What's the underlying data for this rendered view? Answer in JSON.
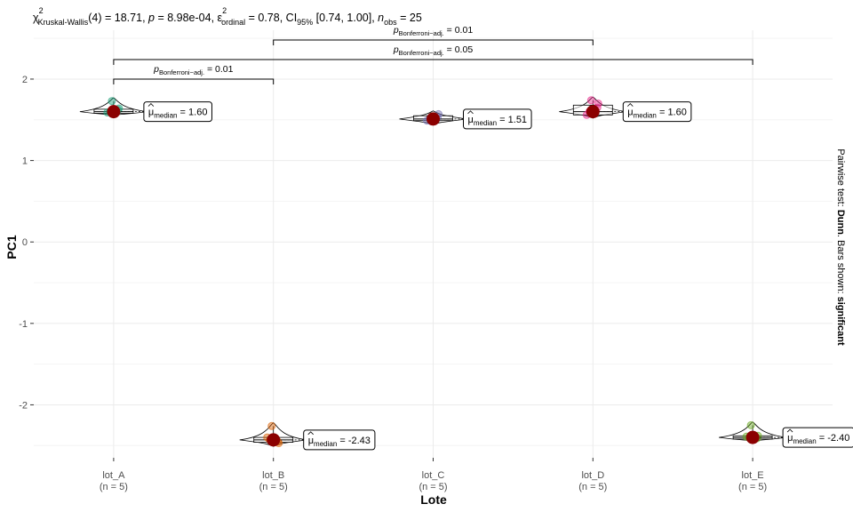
{
  "chart_data": {
    "type": "violin-box",
    "title_parts": {
      "stat_symbol": "χ",
      "stat_superscript": "2",
      "stat_subscript": "Kruskal-Wallis",
      "stat_value": "(4) = 18.71",
      "p_label": "p",
      "p_value": " = 8.98e-04",
      "effect_symbol": "ε",
      "effect_superscript": "2",
      "effect_subscript": "ordinal",
      "effect_value": " = 0.78",
      "ci_label": "CI",
      "ci_subscript": "95%",
      "ci_value": " [0.74, 1.00]",
      "n_label": "n",
      "n_subscript": "obs",
      "n_value": " = 25"
    },
    "xlabel": "Lote",
    "ylabel": "PC1",
    "ylim": [
      -2.65,
      2.6
    ],
    "yticks": [
      2,
      1,
      0,
      -1,
      -2
    ],
    "ytick_labels": [
      "2",
      "1",
      "0",
      "-1",
      "-2"
    ],
    "categories": [
      "lot_A",
      "lot_B",
      "lot_C",
      "lot_D",
      "lot_E"
    ],
    "n_labels": [
      "(n = 5)",
      "(n = 5)",
      "(n = 5)",
      "(n = 5)",
      "(n = 5)"
    ],
    "groups": [
      {
        "name": "lot_A",
        "median": 1.6,
        "box": [
          1.58,
          1.63
        ],
        "points": [
          1.6,
          1.62,
          1.59,
          1.64,
          1.73
        ],
        "color": "#1B9E77",
        "label_value": "1.60"
      },
      {
        "name": "lot_B",
        "median": -2.43,
        "box": [
          -2.46,
          -2.4
        ],
        "points": [
          -2.43,
          -2.45,
          -2.4,
          -2.47,
          -2.26
        ],
        "color": "#D95F02",
        "label_value": "-2.43"
      },
      {
        "name": "lot_C",
        "median": 1.51,
        "box": [
          1.49,
          1.55
        ],
        "points": [
          1.51,
          1.53,
          1.49,
          1.57,
          1.48
        ],
        "color": "#7570B3",
        "label_value": "1.51"
      },
      {
        "name": "lot_D",
        "median": 1.6,
        "box": [
          1.56,
          1.68
        ],
        "points": [
          1.6,
          1.65,
          1.56,
          1.7,
          1.74
        ],
        "color": "#E7298A",
        "label_value": "1.60"
      },
      {
        "name": "lot_E",
        "median": -2.4,
        "box": [
          -2.42,
          -2.38
        ],
        "points": [
          -2.4,
          -2.41,
          -2.39,
          -2.38,
          -2.25
        ],
        "color": "#66A61E",
        "label_value": "-2.40"
      }
    ],
    "median_label": {
      "symbol": "μ",
      "subscript": "median",
      "eq": " = "
    },
    "comparisons": [
      {
        "from": "lot_A",
        "to": "lot_B",
        "level": 2.0,
        "p_symbol": "p",
        "p_subscript": "Bonferroni−adj.",
        "p_text": " = 0.01"
      },
      {
        "from": "lot_A",
        "to": "lot_E",
        "level": 2.24,
        "p_symbol": "p",
        "p_subscript": "Bonferroni−adj.",
        "p_text": " = 0.05"
      },
      {
        "from": "lot_B",
        "to": "lot_D",
        "level": 2.48,
        "p_symbol": "p",
        "p_subscript": "Bonferroni−adj.",
        "p_text": " = 0.01"
      }
    ],
    "side_caption": {
      "prefix": "Pairwise test: ",
      "test": "Dunn",
      "middle": ". Bars shown: ",
      "shown": "significant"
    },
    "median_dot_color": "#8B0000",
    "grid": true
  }
}
